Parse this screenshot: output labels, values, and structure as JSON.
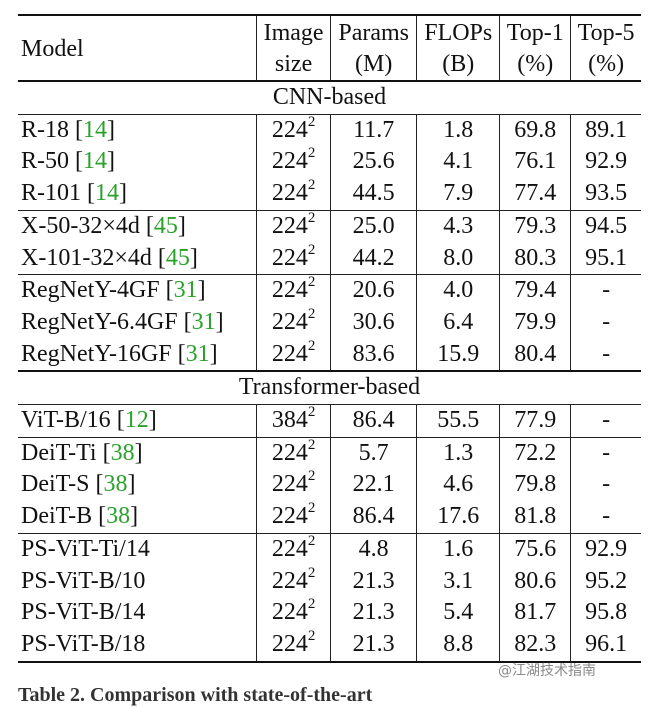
{
  "header": {
    "model": "Model",
    "image_size": [
      "Image",
      "size"
    ],
    "params": [
      "Params",
      "(M)"
    ],
    "flops": [
      "FLOPs",
      "(B)"
    ],
    "top1": [
      "Top-1",
      "(%)"
    ],
    "top5": [
      "Top-5",
      "(%)"
    ]
  },
  "sections": [
    {
      "title": "CNN-based",
      "groups": [
        [
          {
            "model": "R-18",
            "cite": "14",
            "size": "224",
            "params": "11.7",
            "flops": "1.8",
            "top1": "69.8",
            "top5": "89.1"
          },
          {
            "model": "R-50",
            "cite": "14",
            "size": "224",
            "params": "25.6",
            "flops": "4.1",
            "top1": "76.1",
            "top5": "92.9"
          },
          {
            "model": "R-101",
            "cite": "14",
            "size": "224",
            "params": "44.5",
            "flops": "7.9",
            "top1": "77.4",
            "top5": "93.5"
          }
        ],
        [
          {
            "model": "X-50-32×4d",
            "cite": "45",
            "size": "224",
            "params": "25.0",
            "flops": "4.3",
            "top1": "79.3",
            "top5": "94.5"
          },
          {
            "model": "X-101-32×4d",
            "cite": "45",
            "size": "224",
            "params": "44.2",
            "flops": "8.0",
            "top1": "80.3",
            "top5": "95.1"
          }
        ],
        [
          {
            "model": "RegNetY-4GF",
            "cite": "31",
            "size": "224",
            "params": "20.6",
            "flops": "4.0",
            "top1": "79.4",
            "top5": "-"
          },
          {
            "model": "RegNetY-6.4GF",
            "cite": "31",
            "size": "224",
            "params": "30.6",
            "flops": "6.4",
            "top1": "79.9",
            "top5": "-"
          },
          {
            "model": "RegNetY-16GF",
            "cite": "31",
            "size": "224",
            "params": "83.6",
            "flops": "15.9",
            "top1": "80.4",
            "top5": "-"
          }
        ]
      ]
    },
    {
      "title": "Transformer-based",
      "groups": [
        [
          {
            "model": "ViT-B/16",
            "cite": "12",
            "size": "384",
            "params": "86.4",
            "flops": "55.5",
            "top1": "77.9",
            "top5": "-"
          }
        ],
        [
          {
            "model": "DeiT-Ti",
            "cite": "38",
            "size": "224",
            "params": "5.7",
            "flops": "1.3",
            "top1": "72.2",
            "top5": "-"
          },
          {
            "model": "DeiT-S",
            "cite": "38",
            "size": "224",
            "params": "22.1",
            "flops": "4.6",
            "top1": "79.8",
            "top5": "-"
          },
          {
            "model": "DeiT-B",
            "cite": "38",
            "size": "224",
            "params": "86.4",
            "flops": "17.6",
            "top1": "81.8",
            "top5": "-"
          }
        ],
        [
          {
            "model": "PS-ViT-Ti/14",
            "cite": "",
            "size": "224",
            "params": "4.8",
            "flops": "1.6",
            "top1": "75.6",
            "top5": "92.9"
          },
          {
            "model": "PS-ViT-B/10",
            "cite": "",
            "size": "224",
            "params": "21.3",
            "flops": "3.1",
            "top1": "80.6",
            "top5": "95.2"
          },
          {
            "model": "PS-ViT-B/14",
            "cite": "",
            "size": "224",
            "params": "21.3",
            "flops": "5.4",
            "top1": "81.7",
            "top5": "95.8"
          },
          {
            "model": "PS-ViT-B/18",
            "cite": "",
            "size": "224",
            "params": "21.3",
            "flops": "8.8",
            "top1": "82.3",
            "top5": "96.1"
          }
        ]
      ]
    }
  ],
  "size_exponent": "2",
  "watermark": "@江湖技术指南",
  "caption": "Table 2. Comparison with state-of-the-art"
}
